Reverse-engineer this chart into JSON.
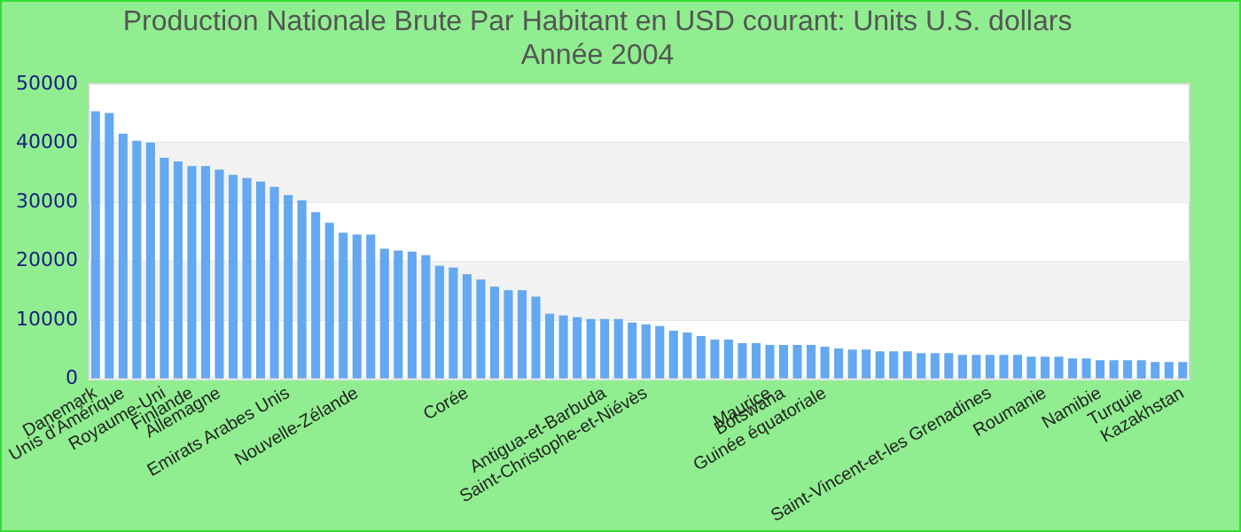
{
  "chart_data": {
    "type": "bar",
    "title": "Production Nationale Brute Par Habitant en USD courant: Units U.S. dollars\nAnnée 2004",
    "categories": [
      "Danemark",
      null,
      "Unis d'Amérique",
      null,
      null,
      "Royaume-Uni",
      null,
      "Finlande",
      null,
      "Allemagne",
      null,
      null,
      null,
      null,
      "Emirats Arabes Unis",
      null,
      null,
      null,
      null,
      "Nouvelle-Zélande",
      null,
      null,
      null,
      null,
      null,
      null,
      null,
      "Corée",
      null,
      null,
      null,
      null,
      null,
      null,
      null,
      null,
      null,
      "Antigua-et-Barbuda",
      null,
      null,
      "Saint-Christophe-et-Niévès",
      null,
      null,
      null,
      null,
      null,
      null,
      null,
      null,
      "Maurice",
      "Botswana",
      null,
      null,
      "Guinée équatoriale",
      null,
      null,
      null,
      null,
      null,
      null,
      null,
      null,
      null,
      null,
      null,
      "Saint-Vincent-et-les Grenadines",
      null,
      null,
      null,
      "Roumanie",
      null,
      null,
      null,
      "Namibie",
      null,
      null,
      "Turquie",
      null,
      null,
      "Kazakhstan"
    ],
    "values": [
      45400,
      45100,
      41600,
      40400,
      40100,
      37500,
      36900,
      36100,
      36100,
      35500,
      34600,
      34100,
      33500,
      32600,
      31200,
      30300,
      28300,
      26500,
      24800,
      24500,
      24500,
      22100,
      21800,
      21600,
      21000,
      19200,
      18900,
      17800,
      16900,
      15700,
      15100,
      15100,
      14000,
      11100,
      10800,
      10500,
      10200,
      10200,
      10200,
      9600,
      9300,
      9000,
      8200,
      7900,
      7300,
      6700,
      6700,
      6100,
      6100,
      5800,
      5800,
      5800,
      5800,
      5500,
      5200,
      5000,
      5000,
      4700,
      4700,
      4700,
      4400,
      4400,
      4400,
      4100,
      4100,
      4100,
      4100,
      4100,
      3800,
      3800,
      3800,
      3500,
      3500,
      3200,
      3200,
      3200,
      3200,
      2900,
      2900,
      2900
    ],
    "color": "#63a8f0",
    "ylim": [
      0,
      50000
    ],
    "yticks": [
      0,
      10000,
      20000,
      30000,
      40000,
      50000
    ],
    "grid": "y",
    "legend": false
  }
}
